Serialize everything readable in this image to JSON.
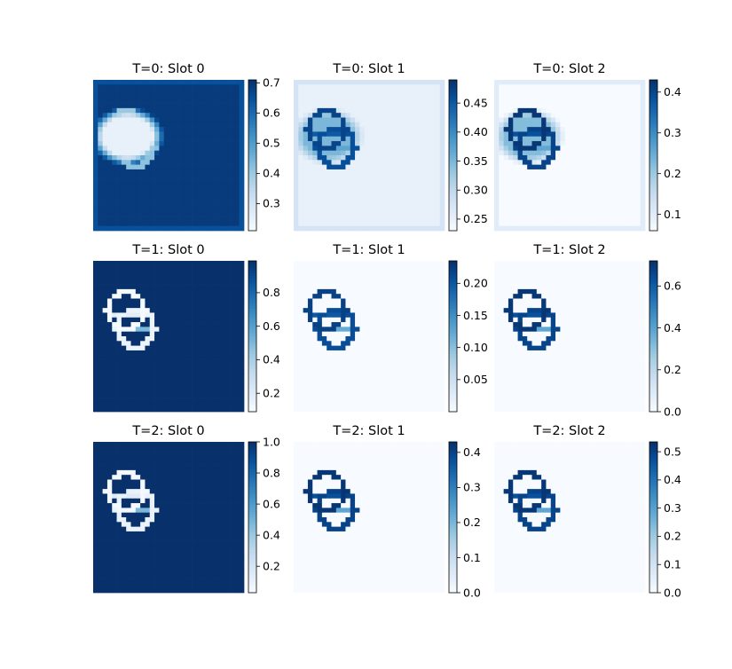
{
  "chart_data": {
    "type": "heatmap",
    "layout": "3x3 grid of heatmaps, each with its own colorbar",
    "colormap": "Blues",
    "colormap_stops": [
      "#f7fbff",
      "#deebf7",
      "#c6dbef",
      "#9ecae1",
      "#6baed6",
      "#4292c6",
      "#2171b5",
      "#08519c",
      "#08306b"
    ],
    "grid": false,
    "grid_size": 32,
    "panels": [
      {
        "title": "T=0: Slot 0",
        "clim": [
          0.21,
          0.71
        ],
        "ticks": [
          0.3,
          0.4,
          0.5,
          0.6,
          0.7
        ],
        "tick_labels": [
          "0.3",
          "0.4",
          "0.5",
          "0.6",
          "0.7"
        ],
        "pattern": "blob_inverted",
        "base": 0.69,
        "min": 0.21
      },
      {
        "title": "T=0: Slot 1",
        "clim": [
          0.23,
          0.49
        ],
        "ticks": [
          0.25,
          0.3,
          0.35,
          0.4,
          0.45
        ],
        "tick_labels": [
          "0.25",
          "0.30",
          "0.35",
          "0.40",
          "0.45"
        ],
        "pattern": "blob_rings",
        "base": 0.25,
        "max": 0.47
      },
      {
        "title": "T=0: Slot 2",
        "clim": [
          0.06,
          0.43
        ],
        "ticks": [
          0.1,
          0.2,
          0.3,
          0.4
        ],
        "tick_labels": [
          "0.1",
          "0.2",
          "0.3",
          "0.4"
        ],
        "pattern": "blob_rings",
        "base": 0.06,
        "max": 0.42
      },
      {
        "title": "T=1: Slot 0",
        "clim": [
          0.09,
          0.99
        ],
        "ticks": [
          0.2,
          0.4,
          0.6,
          0.8
        ],
        "tick_labels": [
          "0.2",
          "0.4",
          "0.6",
          "0.8"
        ],
        "pattern": "rings_inverted",
        "base": 0.99,
        "min": 0.1
      },
      {
        "title": "T=1: Slot 1",
        "clim": [
          0.0,
          0.235
        ],
        "ticks": [
          0.05,
          0.1,
          0.15,
          0.2
        ],
        "tick_labels": [
          "0.05",
          "0.10",
          "0.15",
          "0.20"
        ],
        "pattern": "rings",
        "base": 0.0,
        "max": 0.22
      },
      {
        "title": "T=1: Slot 2",
        "clim": [
          0.0,
          0.72
        ],
        "ticks": [
          0.0,
          0.2,
          0.4,
          0.6
        ],
        "tick_labels": [
          "0.0",
          "0.2",
          "0.4",
          "0.6"
        ],
        "pattern": "rings",
        "base": 0.0,
        "max": 0.7
      },
      {
        "title": "T=2: Slot 0",
        "clim": [
          0.03,
          1.0
        ],
        "ticks": [
          0.2,
          0.4,
          0.6,
          0.8,
          1.0
        ],
        "tick_labels": [
          "0.2",
          "0.4",
          "0.6",
          "0.8",
          "1.0"
        ],
        "pattern": "rings_inverted",
        "base": 1.0,
        "min": 0.05
      },
      {
        "title": "T=2: Slot 1",
        "clim": [
          0.0,
          0.43
        ],
        "ticks": [
          0.0,
          0.1,
          0.2,
          0.3,
          0.4
        ],
        "tick_labels": [
          "0.0",
          "0.1",
          "0.2",
          "0.3",
          "0.4"
        ],
        "pattern": "rings",
        "base": 0.0,
        "max": 0.42
      },
      {
        "title": "T=2: Slot 2",
        "clim": [
          0.0,
          0.535
        ],
        "ticks": [
          0.0,
          0.1,
          0.2,
          0.3,
          0.4,
          0.5
        ],
        "tick_labels": [
          "0.0",
          "0.1",
          "0.2",
          "0.3",
          "0.4",
          "0.5"
        ],
        "pattern": "rings",
        "base": 0.0,
        "max": 0.52
      }
    ]
  }
}
